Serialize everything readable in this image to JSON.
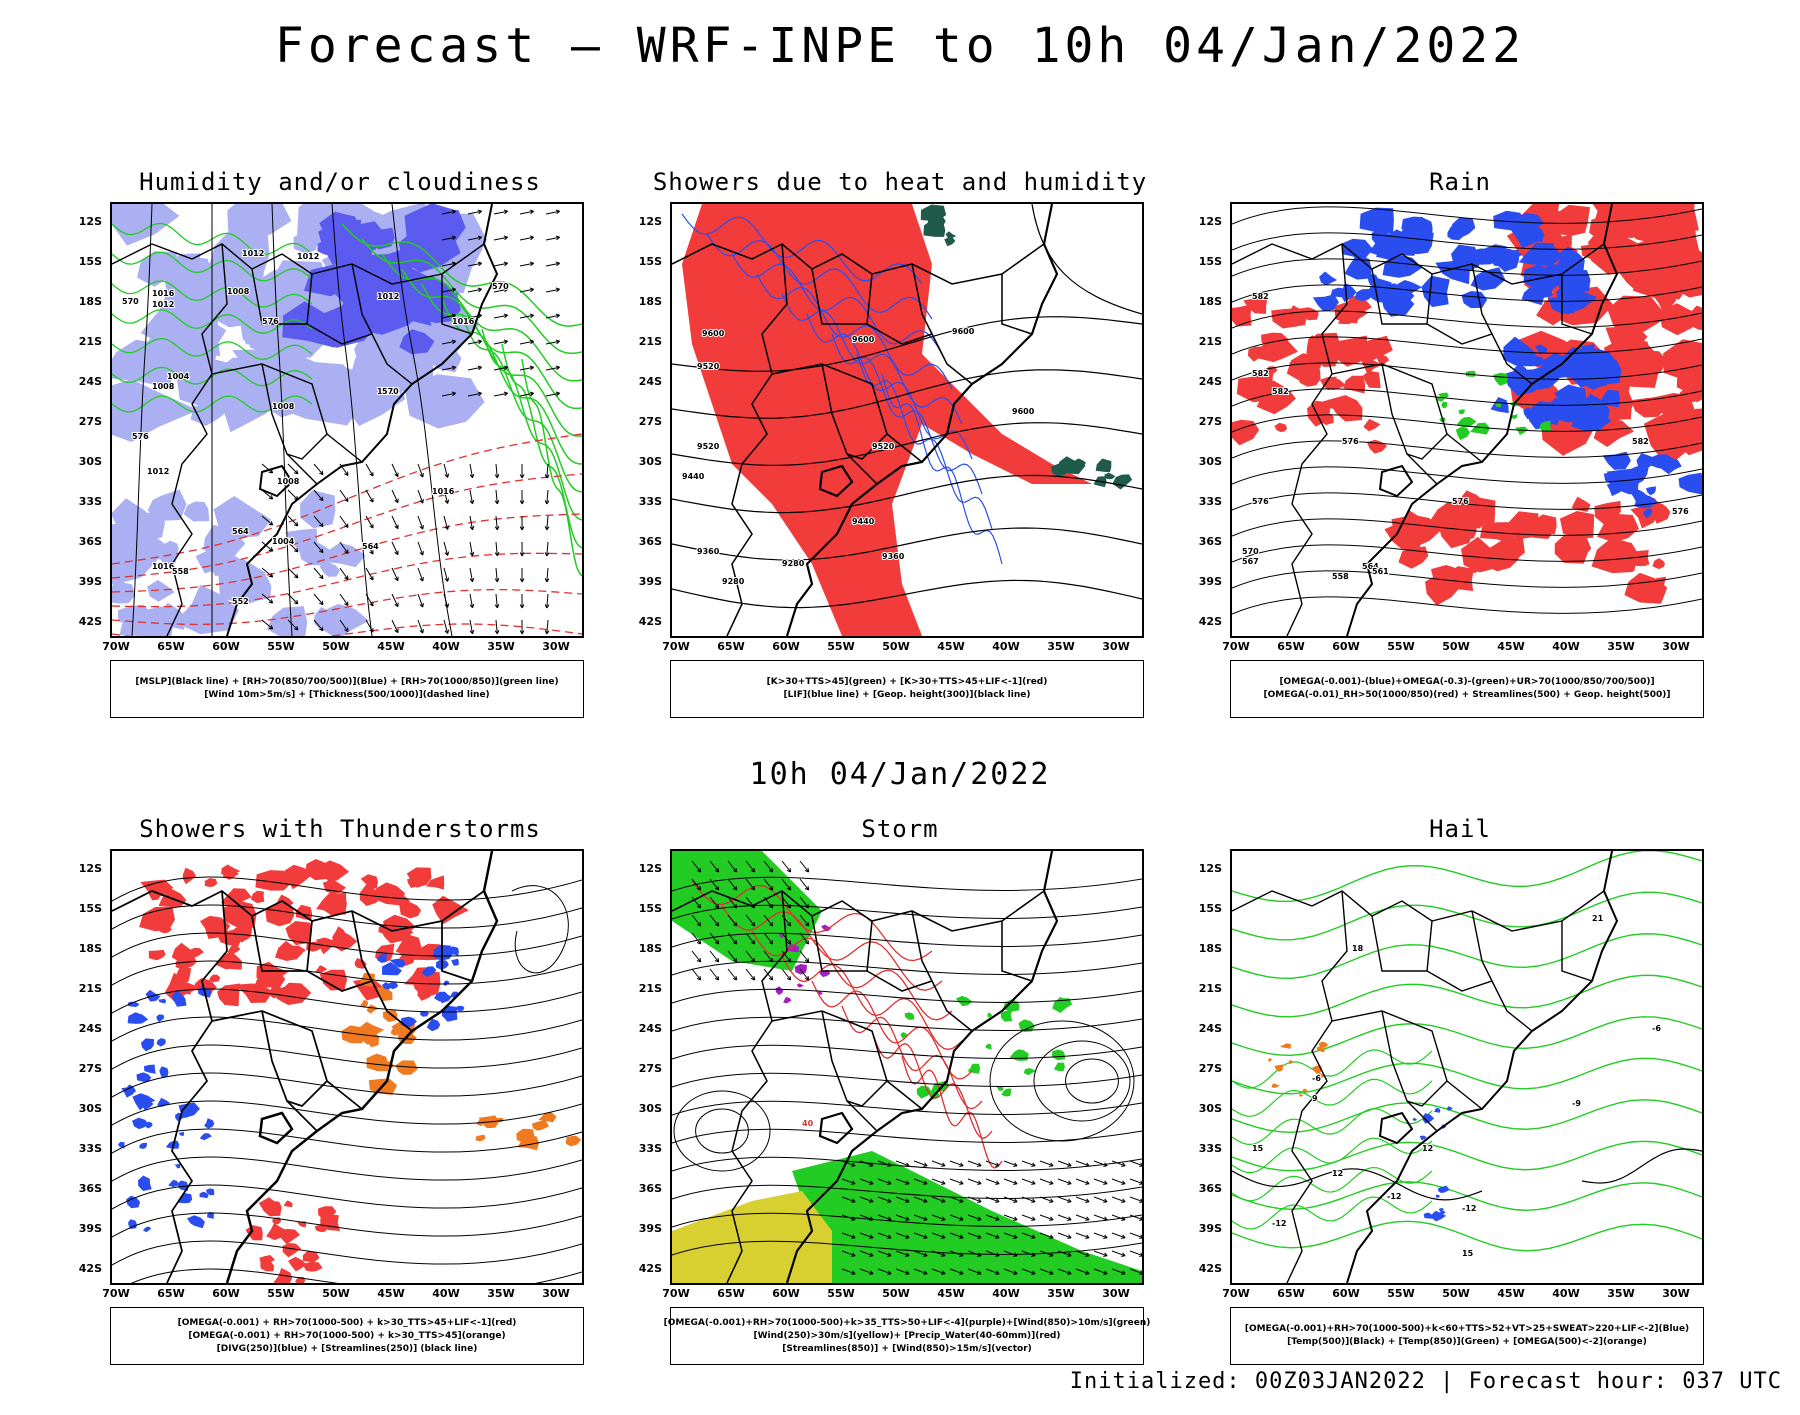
{
  "title": "Forecast — WRF-INPE to 10h 04/Jan/2022",
  "subtitle": "10h 04/Jan/2022",
  "footer": "Initialized: 00Z03JAN2022 | Forecast hour: 037 UTC",
  "axes": {
    "lat_labels": [
      "12S",
      "15S",
      "18S",
      "21S",
      "24S",
      "27S",
      "30S",
      "33S",
      "36S",
      "39S",
      "42S"
    ],
    "lon_labels": [
      "70W",
      "65W",
      "60W",
      "55W",
      "50W",
      "45W",
      "40W",
      "35W",
      "30W"
    ]
  },
  "colors": {
    "red": "#f23c3c",
    "blue": "#2a4df0",
    "light_blue": "#aab0f2",
    "green": "#22cc22",
    "dark_green": "#1f5a4a",
    "yellow": "#d8d030",
    "orange": "#f07a20",
    "purple": "#a020c0"
  },
  "panels": [
    {
      "title": "Humidity and/or cloudiness",
      "legend": [
        "[MSLP](Black line) + [RH>70(850/700/500)](Blue) + [RH>70(1000/850)](green line)",
        "[Wind 10m>5m/s] + [Thickness(500/1000)](dashed line)"
      ],
      "labels": [
        "1012",
        "1012",
        "1016",
        "1012",
        "1008",
        "1012",
        "1004",
        "1008",
        "1016",
        "1012",
        "1008",
        "1016",
        "1004",
        "1016",
        "1008",
        "1012",
        "570",
        "576",
        "576",
        "570",
        "564",
        "558",
        "552",
        "570",
        "564"
      ]
    },
    {
      "title": "Showers due to heat and humidity",
      "legend": [
        "[K>30+TTS>45](green) + [K>30+TTS>45+LIF<-1](red)",
        "[LIF](blue line) + [Geop. height(300)](black line)"
      ],
      "labels": [
        "9600",
        "9600",
        "9600",
        "9520",
        "9520",
        "9520",
        "9600",
        "9440",
        "9440",
        "9360",
        "9360",
        "9280",
        "9280"
      ]
    },
    {
      "title": "Rain",
      "legend": [
        "[OMEGA(-0.001)-(blue)+OMEGA(-0.3)-(green)+UR>70(1000/850/700/500)]",
        "[OMEGA(-0.01)_RH>50(1000/850)(red) + Streamlines(500) + Geop. height(500)]"
      ],
      "labels": [
        "582",
        "582",
        "582",
        "576",
        "576",
        "576",
        "570",
        "567",
        "564",
        "561",
        "558",
        "582",
        "576"
      ]
    },
    {
      "title": "Showers with Thunderstorms",
      "legend": [
        "[OMEGA(-0.001) + RH>70(1000-500) + k>30_TTS>45+LIF<-1](red)",
        "[OMEGA(-0.001) + RH>70(1000-500) + k>30_TTS>45](orange)",
        "[DIVG(250)](blue) + [Streamlines(250)] (black line)"
      ],
      "labels": []
    },
    {
      "title": "Storm",
      "legend": [
        "[OMEGA(-0.001)+RH>70(1000-500)+k>35_TTS>50+LIF<-4](purple)+[Wind(850)>10m/s](green)",
        "[Wind(250)>30m/s](yellow)+ [Precip_Water(40-60mm)](red)",
        "[Streamlines(850)] + [Wind(850)>15m/s](vector)"
      ],
      "labels": [
        "40"
      ]
    },
    {
      "title": "Hail",
      "legend": [
        "[OMEGA(-0.001)+RH>70(1000-500)+k<60+TTS>52+VT>25+SWEAT>220+LIF<-2](Blue)",
        "[Temp(500)](Black) + [Temp(850)](Green) + [OMEGA(500)<-2](orange)"
      ],
      "labels": [
        "-12",
        "-12",
        "-12",
        "-6",
        "-6",
        "-9",
        "9",
        "12",
        "12",
        "15",
        "15",
        "18",
        "21"
      ]
    }
  ]
}
